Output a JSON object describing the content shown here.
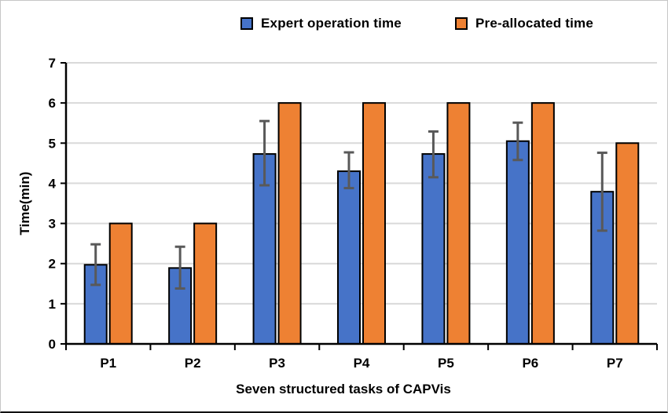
{
  "chart_data": {
    "type": "bar",
    "title": "",
    "xlabel": "Seven structured tasks of CAPVis",
    "ylabel": "Time(min)",
    "categories": [
      "P1",
      "P2",
      "P3",
      "P4",
      "P5",
      "P6",
      "P7"
    ],
    "series": [
      {
        "name": "Expert operation time",
        "color": "#4673C8",
        "values": [
          1.97,
          1.89,
          4.73,
          4.3,
          4.73,
          5.05,
          3.79
        ],
        "error_low": [
          1.47,
          1.38,
          3.95,
          3.88,
          4.15,
          4.58,
          2.82
        ],
        "error_high": [
          2.48,
          2.42,
          5.55,
          4.77,
          5.29,
          5.51,
          4.76
        ]
      },
      {
        "name": "Pre-allocated time",
        "color": "#EE8133",
        "values": [
          3,
          3,
          6,
          6,
          6,
          6,
          5
        ]
      }
    ],
    "ylim": [
      0,
      7
    ],
    "yticks": [
      0,
      1,
      2,
      3,
      4,
      5,
      6,
      7
    ],
    "grid": "horizontal",
    "grid_color": "#D9D9D9",
    "axis_color": "#000000",
    "bar_outline_color": "#000000",
    "error_bar_color": "#595959",
    "legend_position": "top"
  }
}
